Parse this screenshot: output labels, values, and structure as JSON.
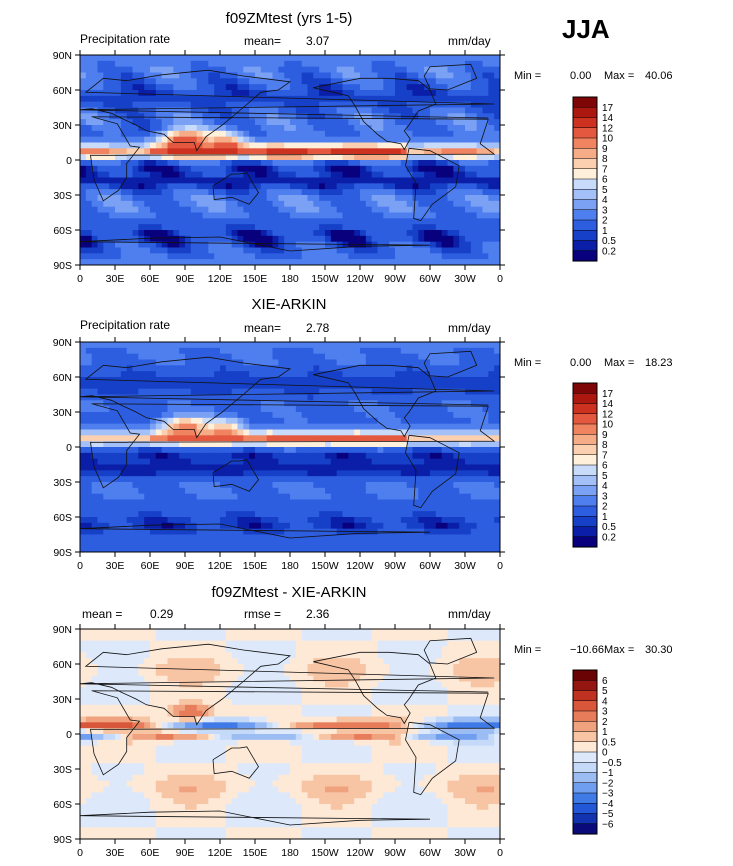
{
  "season": "JJA",
  "color_ramps": {
    "precip": [
      "#08007c",
      "#0a1ea8",
      "#1640c8",
      "#2e5ee0",
      "#4f7fee",
      "#7aa1f4",
      "#a3c1f8",
      "#c9dbfa",
      "#fff0dc",
      "#fbd0b0",
      "#f6ac86",
      "#f08460",
      "#e3583e",
      "#cd3220",
      "#ac1810",
      "#7e0606"
    ],
    "diff": [
      "#0a0a7a",
      "#1232b0",
      "#2258d8",
      "#3f7ae6",
      "#6f9ef0",
      "#9cbdf4",
      "#c5d9f9",
      "#dde9fb",
      "#fde9d6",
      "#f7c5a4",
      "#f0a27e",
      "#e77c5a",
      "#d8563a",
      "#bf3222",
      "#951510",
      "#6a0404"
    ]
  },
  "panels": [
    {
      "id": "model",
      "title": "f09ZMtest (yrs 1-5)",
      "left_label": "Precipitation rate",
      "stat1_label": "mean=",
      "stat1_value": "3.07",
      "stat2_label": "",
      "stat2_value": "",
      "units": "mm/day",
      "min_label": "Min =",
      "min_value": "0.00",
      "max_label": "Max =",
      "max_value": "40.06",
      "ramp": "precip",
      "colorbar_labels": [
        "17",
        "14",
        "12",
        "10",
        "9",
        "8",
        "7",
        "6",
        "5",
        "4",
        "3",
        "2",
        "1",
        "0.5",
        "0.2"
      ]
    },
    {
      "id": "obs",
      "title": "XIE-ARKIN",
      "left_label": "Precipitation rate",
      "stat1_label": "mean=",
      "stat1_value": "2.78",
      "stat2_label": "",
      "stat2_value": "",
      "units": "mm/day",
      "min_label": "Min =",
      "min_value": "0.00",
      "max_label": "Max =",
      "max_value": "18.23",
      "ramp": "precip",
      "colorbar_labels": [
        "17",
        "14",
        "12",
        "10",
        "9",
        "8",
        "7",
        "6",
        "5",
        "4",
        "3",
        "2",
        "1",
        "0.5",
        "0.2"
      ]
    },
    {
      "id": "diff",
      "title": "f09ZMtest - XIE-ARKIN",
      "left_label": "",
      "stat1_label": "mean =",
      "stat1_value": "0.29",
      "stat2_label": "rmse =",
      "stat2_value": "2.36",
      "units": "mm/day",
      "min_label": "Min =",
      "min_value": "−10.66",
      "max_label": "Max =",
      "max_value": "30.30",
      "ramp": "diff",
      "colorbar_labels": [
        "6",
        "5",
        "4",
        "3",
        "2",
        "1",
        "0.5",
        "0",
        "−0.5",
        "−1",
        "−2",
        "−3",
        "−4",
        "−5",
        "−6"
      ]
    }
  ],
  "chart_data": [
    {
      "type": "heatmap",
      "title": "f09ZMtest (yrs 1-5)",
      "field": "Precipitation rate",
      "units": "mm/day",
      "mean": 3.07,
      "min": 0.0,
      "max": 40.06,
      "x_ticks": [
        "0",
        "30E",
        "60E",
        "90E",
        "120E",
        "150E",
        "180",
        "150W",
        "120W",
        "90W",
        "60W",
        "30W",
        "0"
      ],
      "y_ticks": [
        "90N",
        "60N",
        "30N",
        "0",
        "30S",
        "60S",
        "90S"
      ],
      "xlim": [
        0,
        360
      ],
      "ylim": [
        -90,
        90
      ],
      "contour_levels": [
        0.2,
        0.5,
        1,
        2,
        3,
        4,
        5,
        6,
        7,
        8,
        9,
        10,
        12,
        14,
        17
      ]
    },
    {
      "type": "heatmap",
      "title": "XIE-ARKIN",
      "field": "Precipitation rate",
      "units": "mm/day",
      "mean": 2.78,
      "min": 0.0,
      "max": 18.23,
      "x_ticks": [
        "0",
        "30E",
        "60E",
        "90E",
        "120E",
        "150E",
        "180",
        "150W",
        "120W",
        "90W",
        "60W",
        "30W",
        "0"
      ],
      "y_ticks": [
        "90N",
        "60N",
        "30N",
        "0",
        "30S",
        "60S",
        "90S"
      ],
      "xlim": [
        0,
        360
      ],
      "ylim": [
        -90,
        90
      ],
      "contour_levels": [
        0.2,
        0.5,
        1,
        2,
        3,
        4,
        5,
        6,
        7,
        8,
        9,
        10,
        12,
        14,
        17
      ]
    },
    {
      "type": "heatmap",
      "title": "f09ZMtest - XIE-ARKIN",
      "units": "mm/day",
      "mean": 0.29,
      "rmse": 2.36,
      "min": -10.66,
      "max": 30.3,
      "x_ticks": [
        "0",
        "30E",
        "60E",
        "90E",
        "120E",
        "150E",
        "180",
        "150W",
        "120W",
        "90W",
        "60W",
        "30W",
        "0"
      ],
      "y_ticks": [
        "90N",
        "60N",
        "30N",
        "0",
        "30S",
        "60S",
        "90S"
      ],
      "xlim": [
        0,
        360
      ],
      "ylim": [
        -90,
        90
      ],
      "contour_levels": [
        -6,
        -5,
        -4,
        -3,
        -2,
        -1,
        -0.5,
        0,
        0.5,
        1,
        2,
        3,
        4,
        5,
        6
      ]
    }
  ]
}
